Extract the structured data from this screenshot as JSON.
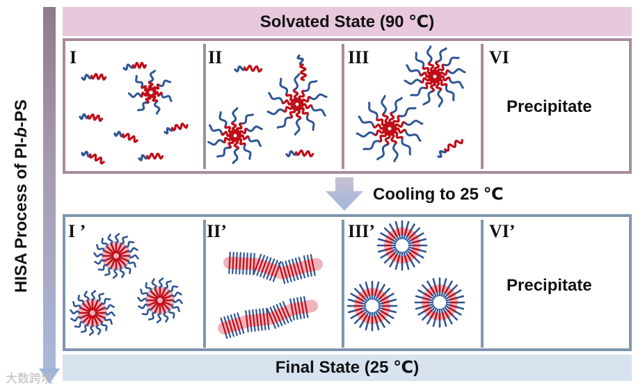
{
  "side_title": "HISA Process of PI-b-PS",
  "top_header": "Solvated State (90 ℃)",
  "bottom_header": "Final State (25 ℃)",
  "arrow_label": "Cooling to 25 ℃",
  "top_panels": [
    {
      "label": "I"
    },
    {
      "label": "II"
    },
    {
      "label": "III"
    },
    {
      "label": "VI",
      "text": "Precipitate"
    }
  ],
  "bottom_panels": [
    {
      "label": "I ’"
    },
    {
      "label": "II’"
    },
    {
      "label": "III’"
    },
    {
      "label": "VI’",
      "text": "Precipitate"
    }
  ],
  "watermark": "大数跨境",
  "colors": {
    "core_block": "#c00c17",
    "corona_block": "#2f5593",
    "micelle_core_fill": "#f1b3bb",
    "top_border": "#a88c9c",
    "bottom_border": "#8097ad",
    "top_header_bg": "#e7c8dc",
    "bottom_header_bg": "#d7e3ef"
  }
}
